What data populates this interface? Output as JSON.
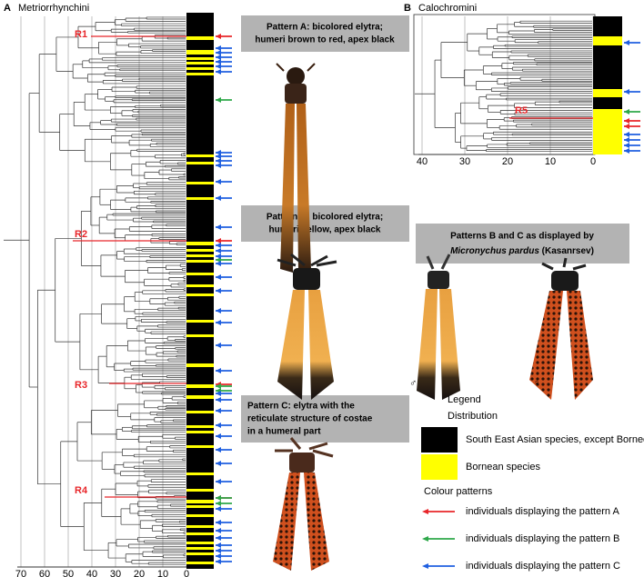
{
  "panel_a": {
    "label": "A",
    "title": "Metriorrhynchini",
    "xticks": [
      70,
      60,
      50,
      40,
      30,
      20,
      10,
      0
    ],
    "clades": [
      "R1",
      "R2",
      "R3",
      "R4"
    ]
  },
  "panel_b": {
    "label": "B",
    "title": "Calochromini",
    "xticks": [
      40,
      30,
      20,
      10,
      0
    ],
    "clade": "R5"
  },
  "pattern_a": {
    "lines": [
      "Pattern A: bicolored elytra;",
      "humeri brown to red, apex black"
    ]
  },
  "pattern_b": {
    "lines": [
      "Pattern B: bicolored elytra;",
      "humeri yellow, apex black"
    ]
  },
  "pattern_c": {
    "lines": [
      "Pattern C: elytra with the",
      "reticulate structure of costae",
      "in a humeral part"
    ]
  },
  "pattern_bc": {
    "line": "Patterns B and C as displayed by",
    "species": "Micronychus pardus",
    "author": " (Kasanrsev)",
    "male": "♂",
    "female": "♀"
  },
  "legend": {
    "title": "Legend",
    "distribution_title": "Distribution",
    "distribution": [
      {
        "label": "South East Asian species, except Borneo",
        "color": "#000000"
      },
      {
        "label": "Bornean species",
        "color": "#ffff00"
      }
    ],
    "patterns_title": "Colour patterns",
    "patterns": [
      {
        "label": "individuals displaying the pattern A",
        "color": "#e8262a"
      },
      {
        "label": "individuals displaying the pattern B",
        "color": "#2ea84a"
      },
      {
        "label": "individuals displaying the pattern C",
        "color": "#1f5fe0"
      }
    ]
  }
}
